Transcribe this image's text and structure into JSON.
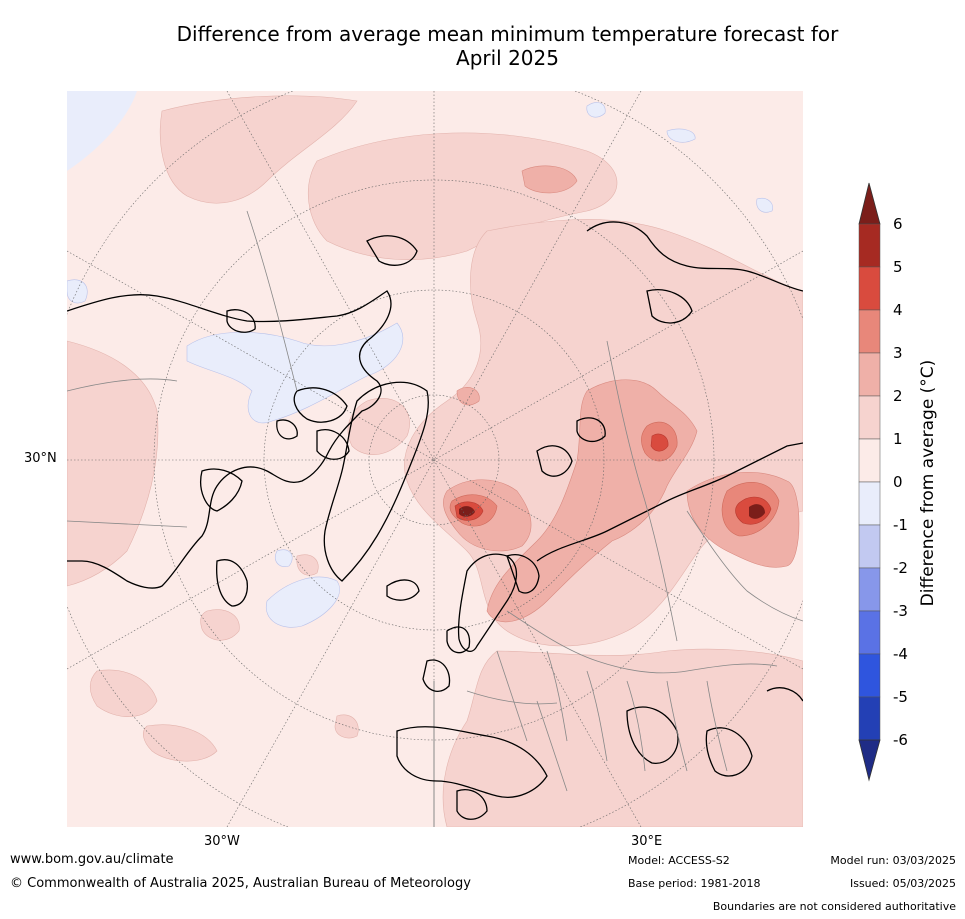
{
  "title_line1": "Difference from average mean minimum temperature forecast for",
  "title_line2": "April 2025",
  "graticule_labels": {
    "lat": "30°N",
    "lon_west": "30°W",
    "lon_east": "30°E"
  },
  "colorbar": {
    "label": "Difference from average (°C)",
    "ticks": [
      "6",
      "5",
      "4",
      "3",
      "2",
      "1",
      "0",
      "-1",
      "-2",
      "-3",
      "-4",
      "-5",
      "-6"
    ],
    "colors_high_to_low": [
      "#7b1e1a",
      "#a62a22",
      "#d94b3e",
      "#e8877a",
      "#efb0a8",
      "#f6d3cf",
      "#fcebe8",
      "#e9edfb",
      "#c2c9f1",
      "#8797ea",
      "#5a72e5",
      "#2f55de",
      "#2340b5",
      "#1f2c86"
    ]
  },
  "footer": {
    "url": "www.bom.gov.au/climate",
    "copyright": "© Commonwealth of Australia 2025, Australian Bureau of Meteorology",
    "model": "Model: ACCESS-S2",
    "base_period": "Base period: 1981-2018",
    "model_run": "Model run: 03/03/2025",
    "issued": "Issued: 05/03/2025",
    "disclaimer": "Boundaries are not considered authoritative"
  }
}
